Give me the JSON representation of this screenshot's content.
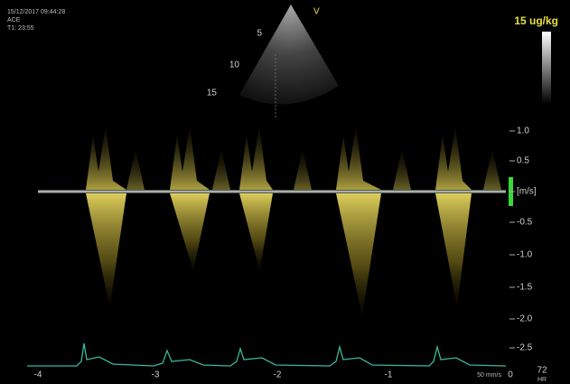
{
  "header": {
    "datetime": "15/12/2017 09:44:28",
    "preset": "ACE",
    "time": "T1: 23:55"
  },
  "probe_marker": "V",
  "dose": "15 ug/kg",
  "depth_labels": [
    "5",
    "10",
    "15"
  ],
  "velocity_scale": {
    "labels": [
      "1.0",
      "0.5",
      "[m/s]",
      "-0.5",
      "-1.0",
      "-1.5",
      "-2.0",
      "-2.5"
    ]
  },
  "time_axis": {
    "labels": [
      "-4",
      "-3",
      "-2",
      "-1",
      "0"
    ],
    "sweep": "50 mm/s"
  },
  "heart_rate": {
    "value": "72",
    "unit": "HR"
  }
}
